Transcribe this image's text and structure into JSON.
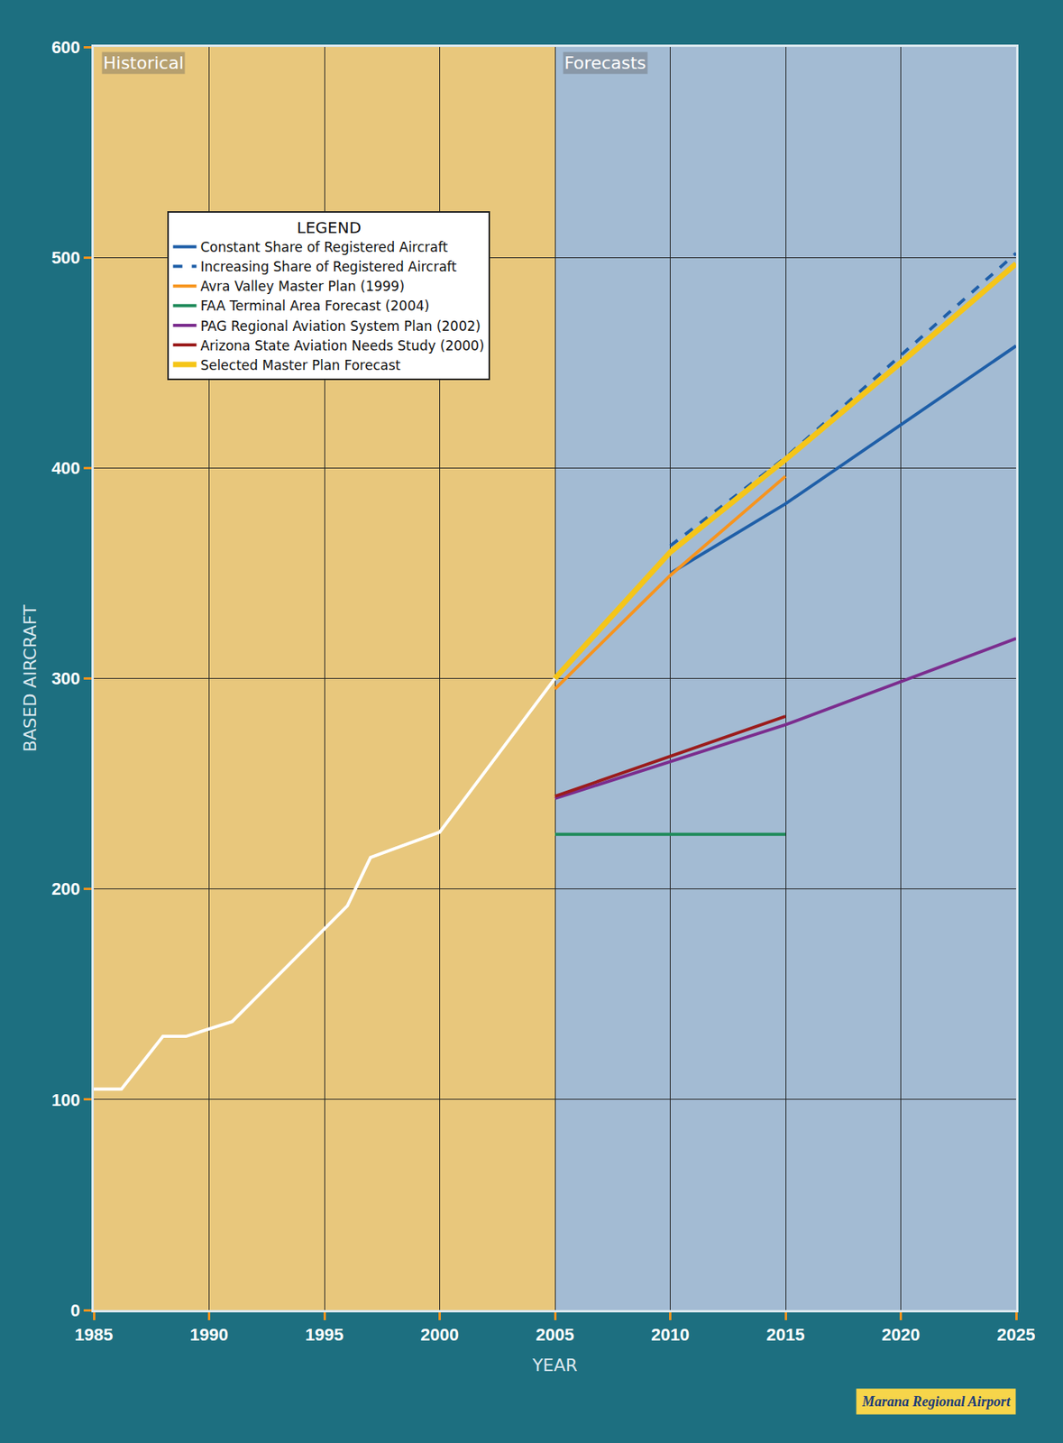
{
  "chart_data": {
    "type": "line",
    "x_label": "YEAR",
    "y_label": "BASED AIRCRAFT",
    "xlim": [
      1985,
      2025
    ],
    "xticks": [
      1985,
      1990,
      1995,
      2000,
      2005,
      2010,
      2015,
      2020,
      2025
    ],
    "ylim": [
      0,
      600
    ],
    "yticks": [
      0,
      100,
      200,
      300,
      400,
      500,
      600
    ],
    "grid": true,
    "legend": "upper left",
    "legend_title": "LEGEND",
    "regions": [
      {
        "label": "Historical",
        "x": [
          1985,
          2005
        ]
      },
      {
        "label": "Forecasts",
        "x": [
          2005,
          2025
        ]
      }
    ],
    "annotations": [
      {
        "text": "Marana Regional Airport"
      }
    ],
    "series": [
      {
        "color": "#ffffff",
        "line_style": "solid",
        "x": [
          1985,
          1986.2,
          1988,
          1989,
          1991,
          1996,
          1997,
          2000,
          2005
        ],
        "values": [
          105,
          105,
          130,
          130,
          137,
          192,
          215,
          227,
          300
        ]
      },
      {
        "name": "Constant Share of Registered Aircraft",
        "color": "#1f5fa8",
        "line_style": "solid",
        "x": [
          2010,
          2015,
          2025
        ],
        "values": [
          350,
          383,
          458
        ]
      },
      {
        "name": "Increasing Share of Registered Aircraft",
        "color": "#1f5fa8",
        "line_style": "dashed",
        "x": [
          2010,
          2015,
          2025
        ],
        "values": [
          363,
          405,
          502
        ]
      },
      {
        "name": "Avra Valley Master Plan (1999)",
        "color": "#f7941d",
        "line_style": "solid",
        "x": [
          2005,
          2010,
          2015
        ],
        "values": [
          295,
          349,
          396
        ]
      },
      {
        "name": "FAA Terminal Area Forecast (2004)",
        "color": "#1f8a5a",
        "line_style": "solid",
        "x": [
          2005,
          2015
        ],
        "values": [
          226,
          226
        ]
      },
      {
        "name": "PAG Regional Aviation System Plan (2002)",
        "color": "#7b2d8e",
        "line_style": "solid",
        "x": [
          2005,
          2015,
          2025
        ],
        "values": [
          243,
          278,
          319
        ]
      },
      {
        "name": "Arizona State Aviation Needs Study (2000)",
        "color": "#9b1c1c",
        "line_style": "solid",
        "x": [
          2005,
          2015
        ],
        "values": [
          244,
          282
        ]
      },
      {
        "name": "Selected Master Plan Forecast",
        "color": "#f5c518",
        "line_style": "solid",
        "x": [
          2005,
          2010,
          2015,
          2020,
          2025
        ],
        "values": [
          300,
          360,
          404,
          450,
          497
        ]
      }
    ]
  }
}
